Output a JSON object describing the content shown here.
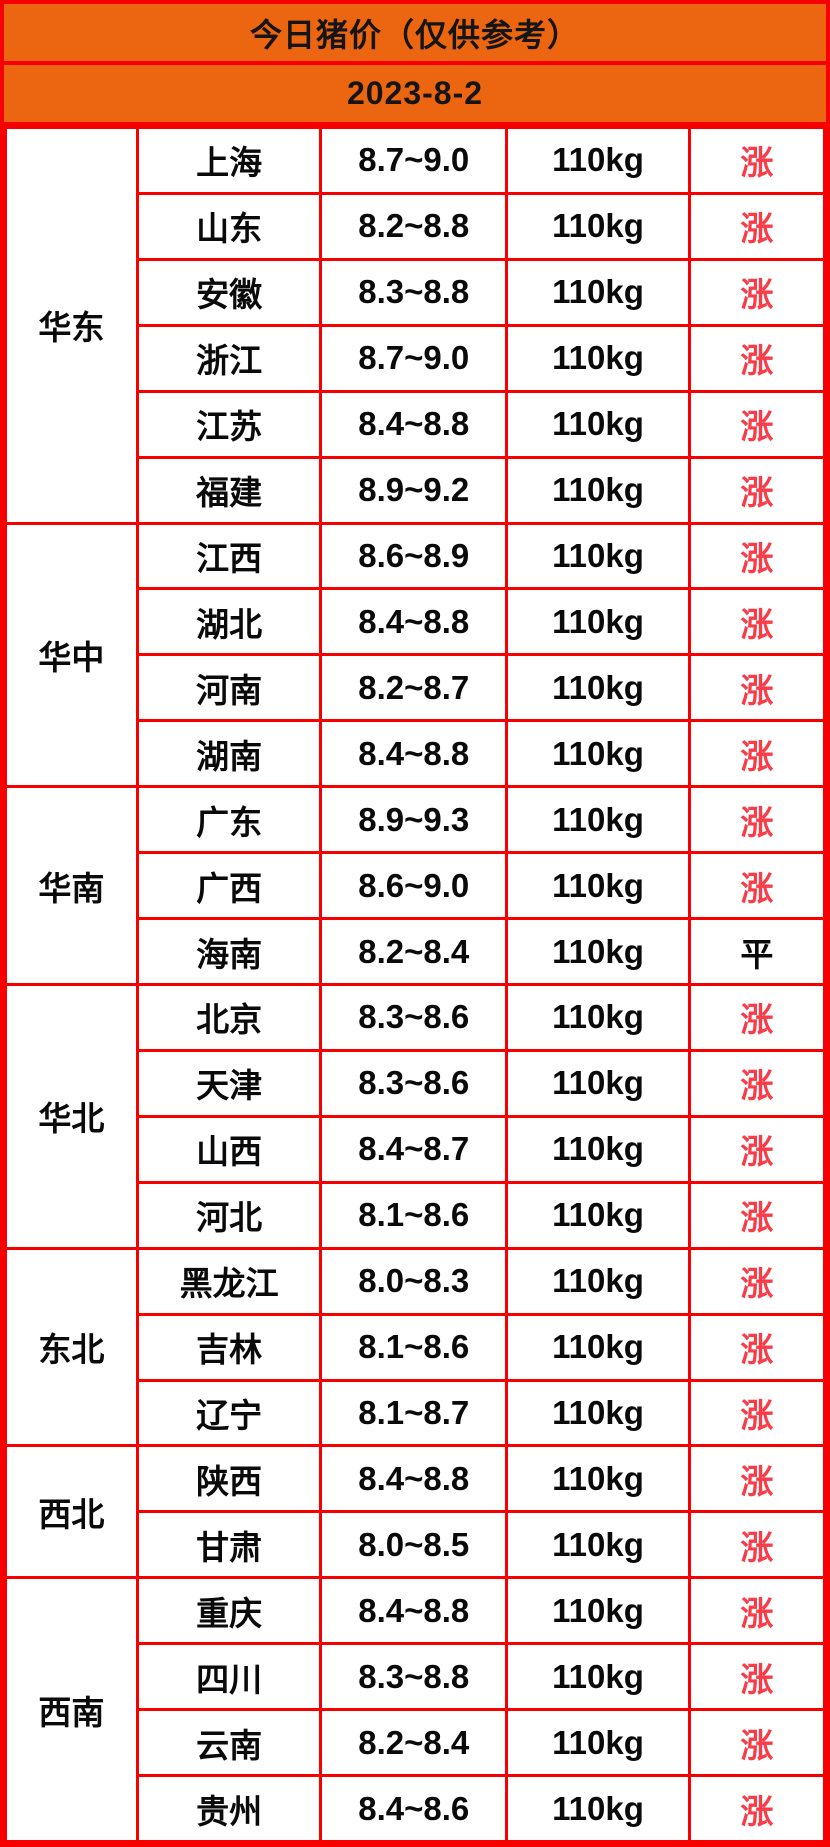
{
  "header": {
    "title": "今日猪价（仅供参考）",
    "date": "2023-8-2"
  },
  "colors": {
    "header_background": "#EC6611",
    "grid_border": "#F80000",
    "trend_up_text": "#F93C47",
    "trend_flat_text": "#0A0A0A"
  },
  "table": {
    "regions": [
      {
        "name": "华东",
        "rows": [
          {
            "province": "上海",
            "price": "8.7~9.0",
            "weight": "110kg",
            "trend": "涨",
            "trend_type": "up"
          },
          {
            "province": "山东",
            "price": "8.2~8.8",
            "weight": "110kg",
            "trend": "涨",
            "trend_type": "up"
          },
          {
            "province": "安徽",
            "price": "8.3~8.8",
            "weight": "110kg",
            "trend": "涨",
            "trend_type": "up"
          },
          {
            "province": "浙江",
            "price": "8.7~9.0",
            "weight": "110kg",
            "trend": "涨",
            "trend_type": "up"
          },
          {
            "province": "江苏",
            "price": "8.4~8.8",
            "weight": "110kg",
            "trend": "涨",
            "trend_type": "up"
          },
          {
            "province": "福建",
            "price": "8.9~9.2",
            "weight": "110kg",
            "trend": "涨",
            "trend_type": "up"
          }
        ]
      },
      {
        "name": "华中",
        "rows": [
          {
            "province": "江西",
            "price": "8.6~8.9",
            "weight": "110kg",
            "trend": "涨",
            "trend_type": "up"
          },
          {
            "province": "湖北",
            "price": "8.4~8.8",
            "weight": "110kg",
            "trend": "涨",
            "trend_type": "up"
          },
          {
            "province": "河南",
            "price": "8.2~8.7",
            "weight": "110kg",
            "trend": "涨",
            "trend_type": "up"
          },
          {
            "province": "湖南",
            "price": "8.4~8.8",
            "weight": "110kg",
            "trend": "涨",
            "trend_type": "up"
          }
        ]
      },
      {
        "name": "华南",
        "rows": [
          {
            "province": "广东",
            "price": "8.9~9.3",
            "weight": "110kg",
            "trend": "涨",
            "trend_type": "up"
          },
          {
            "province": "广西",
            "price": "8.6~9.0",
            "weight": "110kg",
            "trend": "涨",
            "trend_type": "up"
          },
          {
            "province": "海南",
            "price": "8.2~8.4",
            "weight": "110kg",
            "trend": "平",
            "trend_type": "flat"
          }
        ]
      },
      {
        "name": "华北",
        "rows": [
          {
            "province": "北京",
            "price": "8.3~8.6",
            "weight": "110kg",
            "trend": "涨",
            "trend_type": "up"
          },
          {
            "province": "天津",
            "price": "8.3~8.6",
            "weight": "110kg",
            "trend": "涨",
            "trend_type": "up"
          },
          {
            "province": "山西",
            "price": "8.4~8.7",
            "weight": "110kg",
            "trend": "涨",
            "trend_type": "up"
          },
          {
            "province": "河北",
            "price": "8.1~8.6",
            "weight": "110kg",
            "trend": "涨",
            "trend_type": "up"
          }
        ]
      },
      {
        "name": "东北",
        "rows": [
          {
            "province": "黑龙江",
            "price": "8.0~8.3",
            "weight": "110kg",
            "trend": "涨",
            "trend_type": "up"
          },
          {
            "province": "吉林",
            "price": "8.1~8.6",
            "weight": "110kg",
            "trend": "涨",
            "trend_type": "up"
          },
          {
            "province": "辽宁",
            "price": "8.1~8.7",
            "weight": "110kg",
            "trend": "涨",
            "trend_type": "up"
          }
        ]
      },
      {
        "name": "西北",
        "rows": [
          {
            "province": "陕西",
            "price": "8.4~8.8",
            "weight": "110kg",
            "trend": "涨",
            "trend_type": "up"
          },
          {
            "province": "甘肃",
            "price": "8.0~8.5",
            "weight": "110kg",
            "trend": "涨",
            "trend_type": "up"
          }
        ]
      },
      {
        "name": "西南",
        "rows": [
          {
            "province": "重庆",
            "price": "8.4~8.8",
            "weight": "110kg",
            "trend": "涨",
            "trend_type": "up"
          },
          {
            "province": "四川",
            "price": "8.3~8.8",
            "weight": "110kg",
            "trend": "涨",
            "trend_type": "up"
          },
          {
            "province": "云南",
            "price": "8.2~8.4",
            "weight": "110kg",
            "trend": "涨",
            "trend_type": "up"
          },
          {
            "province": "贵州",
            "price": "8.4~8.6",
            "weight": "110kg",
            "trend": "涨",
            "trend_type": "up"
          }
        ]
      }
    ]
  }
}
